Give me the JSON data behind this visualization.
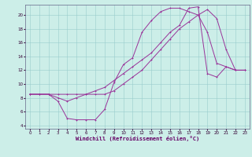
{
  "xlabel": "Windchill (Refroidissement éolien,°C)",
  "bg_color": "#cceee8",
  "grid_color": "#99cccc",
  "line_color": "#993399",
  "xlim": [
    -0.5,
    23.5
  ],
  "ylim": [
    3.5,
    21.5
  ],
  "xticks": [
    0,
    1,
    2,
    3,
    4,
    5,
    6,
    7,
    8,
    9,
    10,
    11,
    12,
    13,
    14,
    15,
    16,
    17,
    18,
    19,
    20,
    21,
    22,
    23
  ],
  "yticks": [
    4,
    6,
    8,
    10,
    12,
    14,
    16,
    18,
    20
  ],
  "curve1_x": [
    0,
    1,
    2,
    3,
    4,
    5,
    6,
    7,
    8,
    9,
    10,
    11,
    12,
    13,
    14,
    15,
    16,
    17,
    18,
    19,
    20,
    21,
    22,
    23
  ],
  "curve1_y": [
    8.5,
    8.5,
    8.5,
    7.5,
    5.0,
    4.8,
    4.8,
    4.8,
    6.3,
    10.2,
    12.8,
    13.8,
    17.5,
    19.2,
    20.5,
    21.0,
    21.0,
    20.5,
    20.0,
    17.5,
    13.0,
    12.5,
    12.0,
    12.0
  ],
  "curve2_x": [
    0,
    1,
    2,
    3,
    4,
    5,
    6,
    7,
    8,
    9,
    10,
    11,
    12,
    13,
    14,
    15,
    16,
    17,
    18,
    19,
    20,
    21,
    22,
    23
  ],
  "curve2_y": [
    8.5,
    8.5,
    8.5,
    8.5,
    8.5,
    8.5,
    8.5,
    8.5,
    8.5,
    9.0,
    10.0,
    11.0,
    12.0,
    13.5,
    15.0,
    16.5,
    18.0,
    19.0,
    20.0,
    20.8,
    19.5,
    15.0,
    12.0,
    12.0
  ],
  "curve3_x": [
    0,
    1,
    2,
    3,
    4,
    5,
    6,
    7,
    8,
    9,
    10,
    11,
    12,
    13,
    14,
    15,
    16,
    17,
    18,
    19,
    20,
    21,
    22,
    23
  ],
  "curve3_y": [
    8.5,
    8.5,
    8.5,
    8.0,
    7.5,
    8.0,
    8.5,
    9.0,
    9.5,
    10.5,
    11.5,
    12.5,
    13.5,
    14.5,
    16.0,
    17.5,
    18.5,
    21.0,
    21.2,
    11.5,
    11.0,
    12.5,
    12.0,
    12.0
  ]
}
